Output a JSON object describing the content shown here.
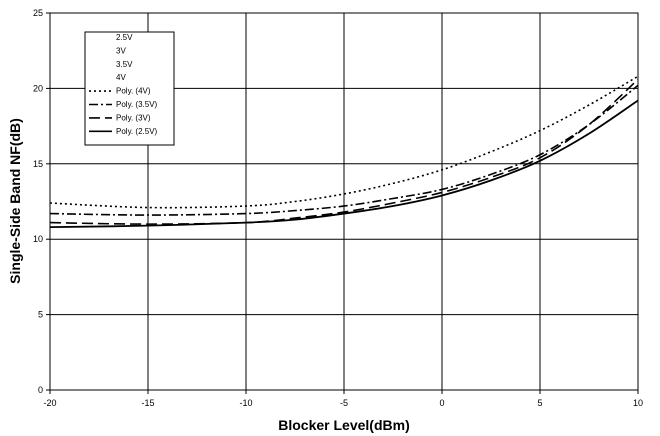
{
  "chart_data": {
    "type": "line",
    "xlabel": "Blocker Level(dBm)",
    "ylabel": "Single-Side Band NF(dB)",
    "xlim": [
      -20,
      10
    ],
    "ylim": [
      0,
      25
    ],
    "x_ticks": [
      -20,
      -15,
      -10,
      -5,
      0,
      5,
      10
    ],
    "y_ticks": [
      0,
      5,
      10,
      15,
      20,
      25
    ],
    "grid": true,
    "legend_position": "top-left",
    "legend_entries": [
      "2.5V",
      "3V",
      "3.5V",
      "4V",
      "Poly. (4V)",
      "Poly. (3.5V)",
      "Poly. (3V)",
      "Poly. (2.5V)"
    ],
    "series": [
      {
        "name": "Poly. (4V)",
        "dash": "dot",
        "x": [
          -20,
          -15,
          -10,
          -7.5,
          -5,
          -2.5,
          0,
          2.5,
          5,
          7.5,
          10
        ],
        "y": [
          12.4,
          12.1,
          12.2,
          12.5,
          13.0,
          13.7,
          14.6,
          15.8,
          17.2,
          18.9,
          20.8
        ]
      },
      {
        "name": "Poly. (3.5V)",
        "dash": "dashdot",
        "x": [
          -20,
          -15,
          -10,
          -7.5,
          -5,
          -2.5,
          0,
          2.5,
          5,
          7.5,
          10
        ],
        "y": [
          11.7,
          11.6,
          11.7,
          11.9,
          12.2,
          12.7,
          13.3,
          14.3,
          15.6,
          17.6,
          20.2
        ]
      },
      {
        "name": "Poly. (3V)",
        "dash": "longdash",
        "x": [
          -20,
          -15,
          -10,
          -7.5,
          -5,
          -2.5,
          0,
          2.5,
          5,
          7.5,
          10
        ],
        "y": [
          11.1,
          11.0,
          11.1,
          11.4,
          11.8,
          12.4,
          13.1,
          14.1,
          15.4,
          17.6,
          20.6
        ]
      },
      {
        "name": "Poly. (2.5V)",
        "dash": "solid",
        "x": [
          -20,
          -15,
          -10,
          -7.5,
          -5,
          -2.5,
          0,
          2.5,
          5,
          7.5,
          10
        ],
        "y": [
          10.8,
          10.9,
          11.1,
          11.3,
          11.7,
          12.2,
          12.9,
          13.9,
          15.2,
          17.0,
          19.2
        ]
      }
    ]
  }
}
